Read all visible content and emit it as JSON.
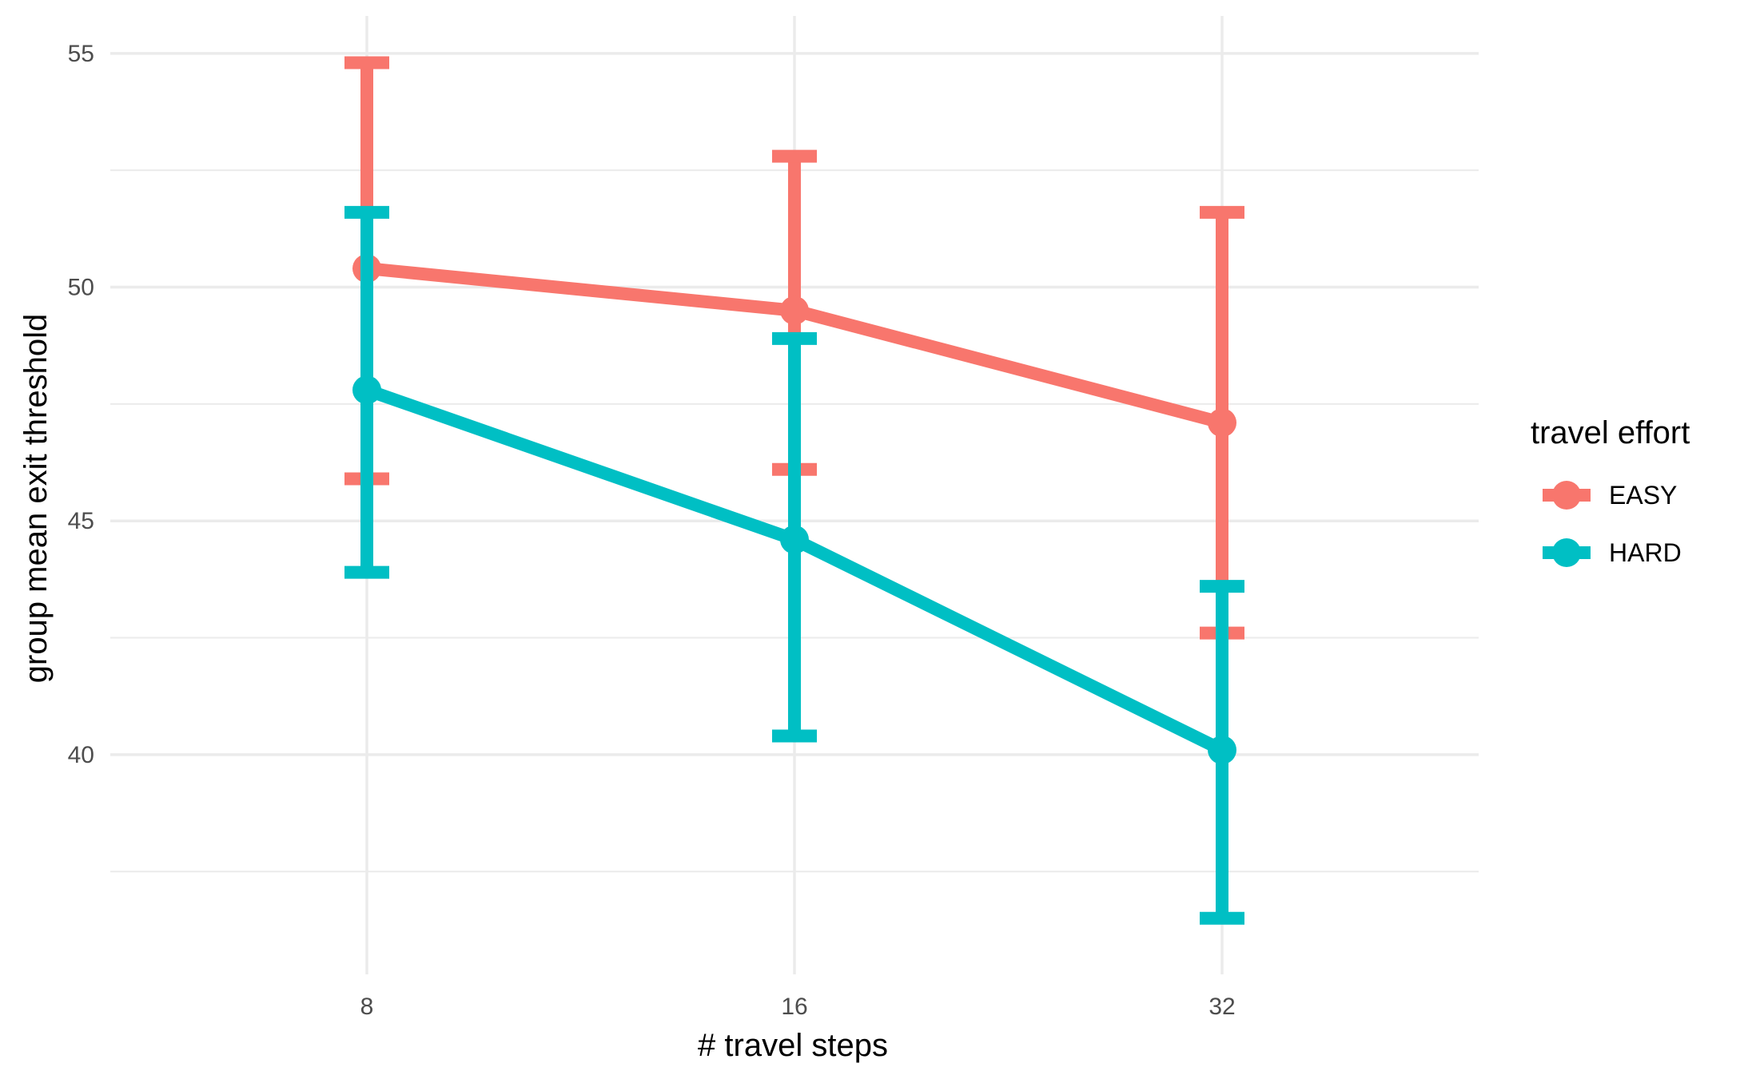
{
  "chart_data": {
    "type": "line",
    "title": "",
    "xlabel": "# travel steps",
    "ylabel": "group mean exit threshold",
    "categories": [
      "8",
      "16",
      "32"
    ],
    "ylim": [
      35.3,
      55.8
    ],
    "yticks": [
      40,
      45,
      50,
      55
    ],
    "grid": true,
    "error_bars": true,
    "legend": {
      "title": "travel effort",
      "position": "right"
    },
    "series": [
      {
        "name": "EASY",
        "color": "#F8766D",
        "values": [
          50.4,
          49.5,
          47.1
        ],
        "lower": [
          45.9,
          46.1,
          42.6
        ],
        "upper": [
          54.8,
          52.8,
          51.6
        ]
      },
      {
        "name": "HARD",
        "color": "#00BFC4",
        "values": [
          47.8,
          44.6,
          40.1
        ],
        "lower": [
          43.9,
          40.4,
          36.5
        ],
        "upper": [
          51.6,
          48.9,
          43.6
        ]
      }
    ]
  }
}
